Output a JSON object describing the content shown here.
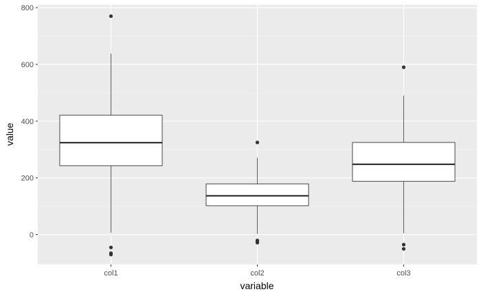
{
  "chart_data": {
    "type": "boxplot",
    "xlabel": "variable",
    "ylabel": "value",
    "categories": [
      "col1",
      "col2",
      "col3"
    ],
    "y_ticks": [
      0,
      200,
      400,
      600,
      800
    ],
    "ylim": [
      -105,
      810
    ],
    "grid": true,
    "boxes": [
      {
        "category": "col1",
        "lower_whisker": 7,
        "q1": 243,
        "median": 324,
        "q3": 421,
        "upper_whisker": 638,
        "outliers": [
          770,
          -45,
          -65,
          -70
        ]
      },
      {
        "category": "col2",
        "lower_whisker": 3,
        "q1": 102,
        "median": 137,
        "q3": 179,
        "upper_whisker": 271,
        "outliers": [
          325,
          -20,
          -25,
          -28
        ]
      },
      {
        "category": "col3",
        "lower_whisker": 5,
        "q1": 188,
        "median": 248,
        "q3": 325,
        "upper_whisker": 490,
        "outliers": [
          590,
          -35,
          -50
        ]
      }
    ]
  }
}
